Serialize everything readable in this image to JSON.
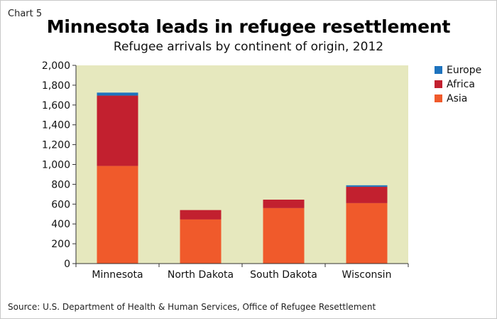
{
  "header": {
    "chart_number": "Chart 5",
    "title": "Minnesota leads in refugee resettlement",
    "subtitle": "Refugee arrivals by continent of origin, 2012"
  },
  "footer": {
    "source": "Source: U.S. Department of Health & Human Services, Office of Refugee Resettlement"
  },
  "colors": {
    "plot_background": "#e6e8be",
    "Asia": "#f05a2b",
    "Africa": "#c2202f",
    "Europe": "#1e73be",
    "axis": "#333333"
  },
  "chart_data": {
    "type": "bar",
    "stacked": true,
    "title": "Minnesota leads in refugee resettlement",
    "subtitle": "Refugee arrivals by continent of origin, 2012",
    "categories": [
      "Minnesota",
      "North Dakota",
      "South Dakota",
      "Wisconsin"
    ],
    "series": [
      {
        "name": "Asia",
        "values": [
          985,
          445,
          560,
          610
        ]
      },
      {
        "name": "Africa",
        "values": [
          710,
          95,
          85,
          165
        ]
      },
      {
        "name": "Europe",
        "values": [
          30,
          0,
          0,
          15
        ]
      }
    ],
    "legend_order": [
      "Europe",
      "Africa",
      "Asia"
    ],
    "legend_position": "top-right",
    "ylim": [
      0,
      2000
    ],
    "yticks": [
      0,
      200,
      400,
      600,
      800,
      1000,
      1200,
      1400,
      1600,
      1800,
      2000
    ],
    "ytick_labels": [
      "0",
      "200",
      "400",
      "600",
      "800",
      "1,000",
      "1,200",
      "1,400",
      "1,600",
      "1,800",
      "2,000"
    ],
    "xlabel": "",
    "ylabel": "",
    "grid": false
  }
}
